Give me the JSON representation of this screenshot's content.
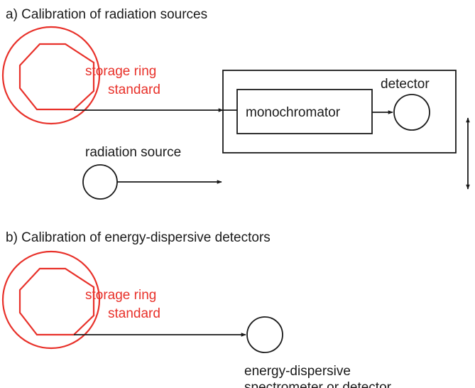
{
  "section_a": {
    "title": "a) Calibration of radiation sources",
    "storage_ring_line1": "storage ring",
    "storage_ring_line2": "standard",
    "monochromator": "monochromator",
    "detector": "detector",
    "radiation_source": "radiation source"
  },
  "section_b": {
    "title": "b) Calibration of energy-dispersive detectors",
    "storage_ring_line1": "storage ring",
    "storage_ring_line2": "standard",
    "detector_line1": "energy-dispersive",
    "detector_line2": "spectrometer or detector"
  },
  "colors": {
    "accent": "#e8312a",
    "ink": "#1a1a1a"
  }
}
